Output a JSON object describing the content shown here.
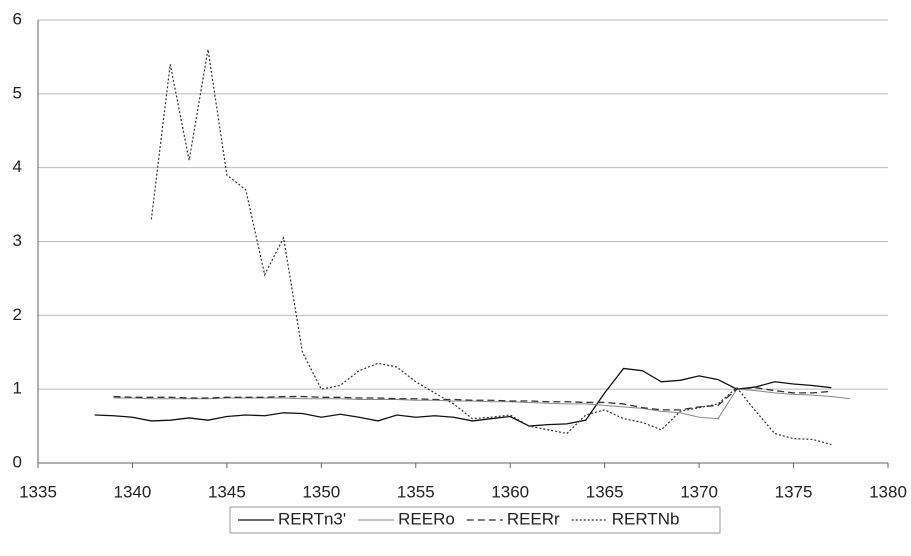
{
  "chart_data": {
    "type": "line",
    "x": [
      1338,
      1339,
      1340,
      1341,
      1342,
      1343,
      1344,
      1345,
      1346,
      1347,
      1348,
      1349,
      1350,
      1351,
      1352,
      1353,
      1354,
      1355,
      1356,
      1357,
      1358,
      1359,
      1360,
      1361,
      1362,
      1363,
      1364,
      1365,
      1366,
      1367,
      1368,
      1369,
      1370,
      1371,
      1372,
      1373,
      1374,
      1375,
      1376,
      1377,
      1378
    ],
    "series": [
      {
        "name": "RERTn3'",
        "color": "#111111",
        "width": 1.3,
        "dash": "none",
        "values": [
          0.65,
          0.64,
          0.62,
          0.57,
          0.58,
          0.61,
          0.58,
          0.63,
          0.65,
          0.64,
          0.68,
          0.67,
          0.62,
          0.66,
          0.62,
          0.57,
          0.65,
          0.62,
          0.64,
          0.62,
          0.57,
          0.6,
          0.63,
          0.5,
          0.52,
          0.53,
          0.58,
          0.95,
          1.28,
          1.25,
          1.1,
          1.12,
          1.18,
          1.13,
          1.0,
          1.03,
          1.1,
          1.07,
          1.05,
          1.02,
          null
        ]
      },
      {
        "name": "REERo",
        "color": "#888888",
        "width": 1,
        "dash": "none",
        "values": [
          null,
          0.88,
          0.88,
          0.87,
          0.87,
          0.87,
          0.87,
          0.88,
          0.88,
          0.88,
          0.88,
          0.87,
          0.87,
          0.87,
          0.86,
          0.86,
          0.86,
          0.85,
          0.85,
          0.84,
          0.84,
          0.83,
          0.83,
          0.82,
          0.81,
          0.8,
          0.8,
          0.78,
          0.76,
          0.74,
          0.7,
          0.68,
          0.62,
          0.6,
          1.0,
          0.98,
          0.95,
          0.93,
          0.92,
          0.9,
          0.87
        ]
      },
      {
        "name": "REERr",
        "color": "#333333",
        "width": 1.3,
        "dash": "7,4",
        "values": [
          null,
          0.9,
          0.89,
          0.89,
          0.89,
          0.88,
          0.88,
          0.89,
          0.89,
          0.89,
          0.9,
          0.9,
          0.89,
          0.89,
          0.88,
          0.88,
          0.87,
          0.87,
          0.86,
          0.86,
          0.85,
          0.85,
          0.84,
          0.84,
          0.83,
          0.83,
          0.82,
          0.82,
          0.8,
          0.75,
          0.72,
          0.72,
          0.76,
          0.78,
          1.0,
          1.02,
          0.98,
          0.95,
          0.95,
          0.97,
          null
        ]
      },
      {
        "name": "RERTNb",
        "color": "#333333",
        "width": 1.2,
        "dash": "2,2",
        "values": [
          null,
          null,
          null,
          3.3,
          5.4,
          4.1,
          5.6,
          3.9,
          3.7,
          2.55,
          3.05,
          1.5,
          1.0,
          1.05,
          1.25,
          1.35,
          1.3,
          1.1,
          0.95,
          0.8,
          0.6,
          0.62,
          0.65,
          0.5,
          0.45,
          0.4,
          0.65,
          0.72,
          0.6,
          0.55,
          0.45,
          0.7,
          0.75,
          0.8,
          1.02,
          0.7,
          0.4,
          0.33,
          0.32,
          0.25,
          null
        ]
      }
    ],
    "xlim": [
      1335,
      1380
    ],
    "xticks": [
      1335,
      1340,
      1345,
      1350,
      1355,
      1360,
      1365,
      1370,
      1375,
      1380
    ],
    "ylim": [
      0,
      6
    ],
    "yticks": [
      0,
      1,
      2,
      3,
      4,
      5,
      6
    ],
    "grid": true,
    "legend": "bottom"
  }
}
